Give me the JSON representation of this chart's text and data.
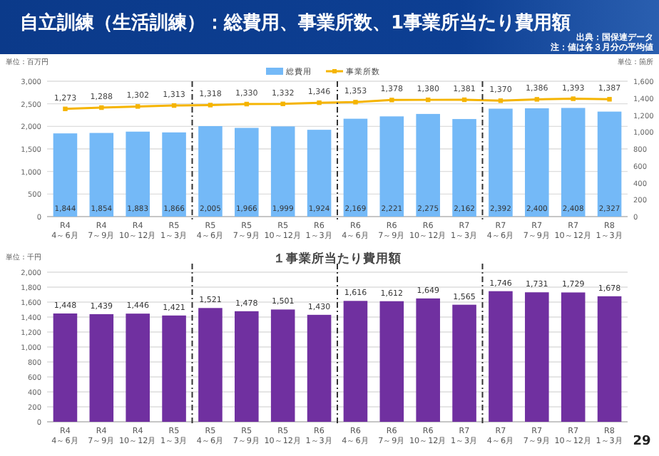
{
  "chart_data": [
    {
      "type": "bar",
      "title": "自立訓練（生活訓練）：総費用、事業所数、1事業所当たり費用額",
      "ylabel": "単位：百万円",
      "y2label": "単位：箇所",
      "annotations": [
        "出典：国保連データ",
        "注：値は各３月分の平均値",
        "29"
      ],
      "categories": [
        "R4 4～6月",
        "R4 7～9月",
        "R4 10～12月",
        "R5 1～3月",
        "R5 4～6月",
        "R5 7～9月",
        "R5 10～12月",
        "R6 1～3月",
        "R6 4～6月",
        "R6 7～9月",
        "R6 10～12月",
        "R7 1～3月",
        "R7 4～6月",
        "R7 7～9月",
        "R7 10～12月",
        "R8 1～3月"
      ],
      "series": [
        {
          "name": "総費用",
          "type": "bar",
          "color": "#74b9f7",
          "values": [
            1844,
            1854,
            1883,
            1866,
            2005,
            1966,
            1999,
            1924,
            2169,
            2221,
            2275,
            2162,
            2392,
            2400,
            2408,
            2327
          ],
          "value_labels": [
            "1,844",
            "1,854",
            "1,883",
            "1,866",
            "2,005",
            "1,966",
            "1,999",
            "1,924",
            "2,169",
            "2,221",
            "2,275",
            "2,162",
            "2,392",
            "2,400",
            "2,408",
            "2,327"
          ]
        },
        {
          "name": "事業所数",
          "type": "line",
          "axis": "y2",
          "color": "#f5b400",
          "marker": "square",
          "values": [
            1273,
            1288,
            1302,
            1313,
            1318,
            1330,
            1332,
            1346,
            1353,
            1378,
            1380,
            1381,
            1370,
            1386,
            1393,
            1387
          ],
          "value_labels": [
            "1,273",
            "1,288",
            "1,302",
            "1,313",
            "1,318",
            "1,330",
            "1,332",
            "1,346",
            "1,353",
            "1,378",
            "1,380",
            "1,381",
            "1,370",
            "1,386",
            "1,393",
            "1,387"
          ]
        }
      ],
      "ylim": [
        0,
        3000
      ],
      "yticks": [
        0,
        500,
        {
          "value": 1000,
          "label": "1,000"
        },
        {
          "value": 1500,
          "label": "1,500"
        },
        {
          "value": 2000,
          "label": "2,000"
        },
        {
          "value": 2500,
          "label": "2,500"
        },
        {
          "value": 3000,
          "label": "3,000"
        }
      ],
      "y2lim": [
        0,
        1600
      ],
      "y2ticks": [
        0,
        200,
        400,
        600,
        800,
        {
          "value": 1000,
          "label": "1,000"
        },
        {
          "value": 1200,
          "label": "1,200"
        },
        {
          "value": 1400,
          "label": "1,400"
        },
        {
          "value": 1600,
          "label": "1,600"
        }
      ],
      "grid": "y",
      "legend": "top"
    },
    {
      "type": "bar",
      "title": "１事業所当たり費用額",
      "ylabel": "単位：千円",
      "categories": [
        "R4 4～6月",
        "R4 7～9月",
        "R4 10～12月",
        "R5 1～3月",
        "R5 4～6月",
        "R5 7～9月",
        "R5 10～12月",
        "R6 1～3月",
        "R6 4～6月",
        "R6 7～9月",
        "R6 10～12月",
        "R7 1～3月",
        "R7 4～6月",
        "R7 7～9月",
        "R7 10～12月",
        "R8 1～3月"
      ],
      "series": [
        {
          "color": "#7030a0",
          "values": [
            1448,
            1439,
            1446,
            1421,
            1521,
            1478,
            1501,
            1430,
            1616,
            1612,
            1649,
            1565,
            1746,
            1731,
            1729,
            1678
          ],
          "value_labels": [
            "1,448",
            "1,439",
            "1,446",
            "1,421",
            "1,521",
            "1,478",
            "1,501",
            "1,430",
            "1,616",
            "1,612",
            "1,649",
            "1,565",
            "1,746",
            "1,731",
            "1,729",
            "1,678"
          ]
        }
      ],
      "ylim": [
        0,
        2000
      ],
      "yticks": [
        0,
        200,
        400,
        600,
        800,
        {
          "value": 1000,
          "label": "1,000"
        },
        {
          "value": 1200,
          "label": "1,200"
        },
        {
          "value": 1400,
          "label": "1,400"
        },
        {
          "value": 1600,
          "label": "1,600"
        },
        {
          "value": 1800,
          "label": "1,800"
        },
        {
          "value": 2000,
          "label": "2,000"
        }
      ],
      "grid": "y"
    }
  ]
}
